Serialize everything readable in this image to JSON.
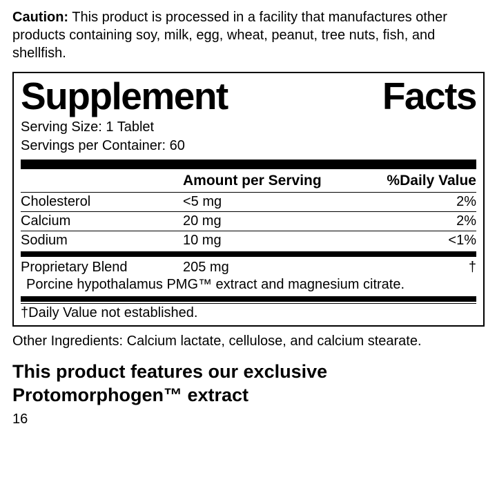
{
  "caution": {
    "label": "Caution:",
    "text": " This product is processed in a facility that manufactures other products containing soy, milk, egg, wheat, peanut, tree nuts, fish, and shellfish."
  },
  "panel": {
    "title_word1": "Supplement",
    "title_word2": "Facts",
    "serving_size": "Serving Size: 1 Tablet",
    "servings_per_container": "Servings per Container: 60",
    "header": {
      "amount": "Amount per Serving",
      "dv": "%Daily Value"
    },
    "rows": [
      {
        "name": "Cholesterol",
        "amount": "<5 mg",
        "dv": "2%"
      },
      {
        "name": "Calcium",
        "amount": "20 mg",
        "dv": "2%"
      },
      {
        "name": "Sodium",
        "amount": "10 mg",
        "dv": "<1%"
      }
    ],
    "blend": {
      "name": "Proprietary Blend",
      "amount": "205 mg",
      "dv": "†",
      "detail": "Porcine hypothalamus PMG™ extract and magnesium citrate."
    },
    "footnote": "†Daily Value not established."
  },
  "other_ingredients": "Other Ingredients: Calcium lactate, cellulose, and calcium stearate.",
  "feature_line": "This product features our exclusive Protomorphogen™ extract",
  "page_number": "16"
}
